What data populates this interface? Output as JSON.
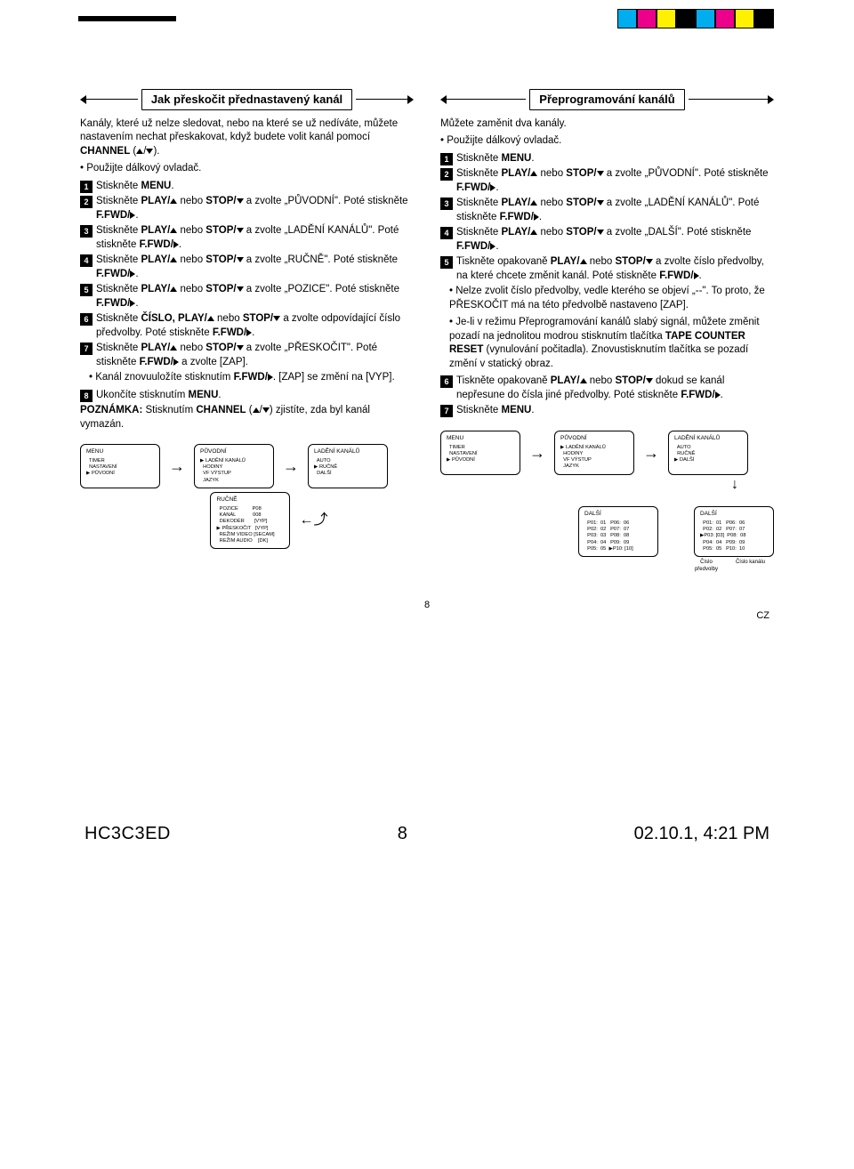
{
  "swatches": [
    "#00adee",
    "#ec008b",
    "#fff100",
    "#000000",
    "#00adee",
    "#ec008b",
    "#fff100",
    "#000000"
  ],
  "left": {
    "title": "Jak přeskočit přednastavený kanál",
    "intro": "Kanály, které už nelze sledovat, nebo na které se už nedíváte, můžete nastavením nechat přeskakovat, když budete volit kanál pomocí <b>CHANNEL</b> (<span class='tri-up'></span>/<span class='tri-down'></span>).",
    "bullet": "• Použijte dálkový ovladač.",
    "steps": [
      "Stiskněte <b>MENU</b>.",
      "Stiskněte <b>PLAY/<span class='tri-up'></span></b> nebo <b>STOP/<span class='tri-down'></span></b> a zvolte „PŮVODNÍ\". Poté stiskněte <b>F.FWD/<span class='tri-right'></span></b>.",
      "Stiskněte <b>PLAY/<span class='tri-up'></span></b> nebo <b>STOP/<span class='tri-down'></span></b> a zvolte „LADĚNÍ KANÁLŮ\". Poté stiskněte <b>F.FWD/<span class='tri-right'></span></b>.",
      "Stiskněte <b>PLAY/<span class='tri-up'></span></b> nebo <b>STOP/<span class='tri-down'></span></b> a zvolte „RUČNĚ\". Poté stiskněte <b>F.FWD/<span class='tri-right'></span></b>.",
      "Stiskněte <b>PLAY/<span class='tri-up'></span></b> nebo <b>STOP/<span class='tri-down'></span></b> a zvolte „POZICE\". Poté stiskněte <b>F.FWD/<span class='tri-right'></span></b>.",
      "Stiskněte <b>ČÍSLO, PLAY/<span class='tri-up'></span></b> nebo <b>STOP/<span class='tri-down'></span></b> a zvolte odpovídající číslo předvolby. Poté stiskněte <b>F.FWD/<span class='tri-right'></span></b>.",
      "Stiskněte <b>PLAY/<span class='tri-up'></span></b> nebo <b>STOP/<span class='tri-down'></span></b> a zvolte „PŘESKOČIT\". Poté stiskněte <b>F.FWD/<span class='tri-right'></span></b> a zvolte [ZAP].",
      "Ukončíte stisknutím <b>MENU</b>."
    ],
    "sub_bullet": "• Kanál znovuuložíte stisknutím <b>F.FWD/<span class='tri-right'></span></b>. [ZAP] se změní na [VYP].",
    "note": "<b>POZNÁMKA:</b> Stisknutím <b>CHANNEL</b> (<span class='tri-up'></span>/<span class='tri-down'></span>) zjistíte, zda byl kanál vymazán.",
    "menus": {
      "m1": {
        "title": "MENU",
        "lines": "  TIMER\n  NASTAVENÍ\n▶ PŮVODNÍ"
      },
      "m2": {
        "title": "PŮVODNÍ",
        "lines": "▶ LADĚNÍ KANÁLŮ\n  HODINY\n  VF VÝSTUP\n  JAZYK"
      },
      "m3": {
        "title": "LADĚNÍ KANÁLŮ",
        "lines": "  AUTO\n▶ RUČNĚ\n  DALŠÍ"
      },
      "m4": {
        "title": "RUČNĚ",
        "lines": "  POZICE          P08\n  KANÁL            008\n  DEKODÉR       [VYP]\n▶ PŘESKOČIT   [VYP]\n  REŽIM VIDEO [SECAM]\n  REŽIM AUDIO    [DK]"
      }
    }
  },
  "right": {
    "title": "Přeprogramování kanálů",
    "intro": "Můžete zaměnit dva kanály.",
    "bullet": "• Použijte dálkový ovladač.",
    "steps": [
      "Stiskněte <b>MENU</b>.",
      "Stiskněte <b>PLAY/<span class='tri-up'></span></b> nebo <b>STOP/<span class='tri-down'></span></b> a zvolte „PŮVODNÍ\". Poté stiskněte <b>F.FWD/<span class='tri-right'></span></b>.",
      "Stiskněte <b>PLAY/<span class='tri-up'></span></b> nebo <b>STOP/<span class='tri-down'></span></b> a zvolte „LADĚNÍ KANÁLŮ\". Poté stiskněte <b>F.FWD/<span class='tri-right'></span></b>.",
      "Stiskněte <b>PLAY/<span class='tri-up'></span></b> nebo <b>STOP/<span class='tri-down'></span></b> a zvolte „DALŠÍ\". Poté stiskněte <b>F.FWD/<span class='tri-right'></span></b>.",
      "Tiskněte opakovaně <b>PLAY/<span class='tri-up'></span></b> nebo <b>STOP/<span class='tri-down'></span></b> a zvolte číslo předvolby, na které chcete změnit kanál. Poté stiskněte <b>F.FWD/<span class='tri-right'></span></b>.",
      "Tiskněte opakovaně <b>PLAY/<span class='tri-up'></span></b> nebo <b>STOP/<span class='tri-down'></span></b> dokud se kanál nepřesune do čísla jiné předvolby. Poté stiskněte <b>F.FWD/<span class='tri-right'></span></b>.",
      "Stiskněte <b>MENU</b>."
    ],
    "mid_bullets": [
      "• Nelze zvolit číslo předvolby, vedle kterého se objeví „--\". To proto, že PŘESKOČIT má na této předvolbě nastaveno [ZAP].",
      "• Je-li v režimu Přeprogramování kanálů slabý signál, můžete změnit pozadí na jednolitou modrou stisknutím tlačítka <b>TAPE COUNTER RESET</b> (vynulování počitadla). Znovustisknutím tlačítka se pozadí změní v statický obraz."
    ],
    "menus": {
      "m1": {
        "title": "MENU",
        "lines": "  TIMER\n  NASTAVENÍ\n▶ PŮVODNÍ"
      },
      "m2": {
        "title": "PŮVODNÍ",
        "lines": "▶ LADĚNÍ KANÁLŮ\n  HODINY\n  VF VÝSTUP\n  JAZYK"
      },
      "m3": {
        "title": "LADĚNÍ KANÁLŮ",
        "lines": "  AUTO\n  RUČNĚ\n▶ DALŠÍ"
      },
      "m4": {
        "title": "DALŠÍ",
        "lines": "  P01:  01   P06:  06\n  P02:  02   P07:  07\n  P03:  03   P08:  08\n  P04:  04   P09:  09\n  P05:  05  ▶P10: [10]"
      },
      "m5": {
        "title": "DALŠÍ",
        "lines": "  P01:  01   P06:  06\n  P02:  02   P07:  07\n▶P03: [03]  P08:  08\n  P04:  04   P09:  09\n  P05:  05   P10:  10"
      },
      "caption1": "Číslo\npředvolby",
      "caption2": "Číslo kanálu"
    }
  },
  "page_number": "8",
  "lang_code": "CZ",
  "footer": {
    "code": "HC3C3ED",
    "page": "8",
    "date": "02.10.1, 4:21 PM"
  }
}
